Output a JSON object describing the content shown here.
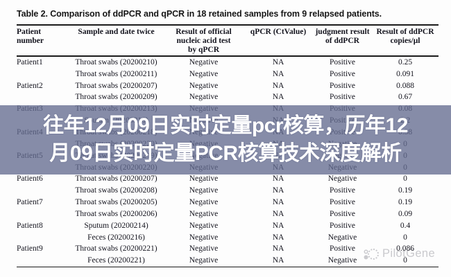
{
  "title": "Table 2. Comparison of ddPCR and qPCR in 18 retained samples from 9 relapsed patients.",
  "table": {
    "headers": [
      "Patient\nnumber",
      "Sample and date twice",
      "Result of official\nnucleic acid test\nby qPCR",
      "qPCR (CtValue)",
      "judgment result\nof ddPCR",
      "Result of ddPCR\ncopies/μl"
    ],
    "rows": [
      {
        "patient": "Patient1",
        "sample": "Throat swabs (20200210)",
        "official": "Negative",
        "ct": "NA",
        "judgment": "Positive",
        "copies": "0.25"
      },
      {
        "patient": "",
        "sample": "Throat swabs (20200211)",
        "official": "Negative",
        "ct": "NA",
        "judgment": "Positive",
        "copies": "0.091"
      },
      {
        "patient": "Patient2",
        "sample": "Throat swabs (20200207)",
        "official": "Negative",
        "ct": "NA",
        "judgment": "Positive",
        "copies": "0.088"
      },
      {
        "patient": "",
        "sample": "Throat swabs (20200209)",
        "official": "Negative",
        "ct": "NA",
        "judgment": "Positive",
        "copies": "0.67"
      },
      {
        "patient": "Patient3",
        "sample": "Throat swabs (20200213)",
        "official": "Negative",
        "ct": "NA",
        "judgment": "Positive",
        "copies": "0.08"
      },
      {
        "patient": "",
        "sample": "Sputum (20200216)",
        "official": "Negative",
        "ct": "NA",
        "judgment": "Positive",
        "copies": "2.2"
      },
      {
        "patient": "Patient4",
        "sample": "Throat swabs (20200218)",
        "official": "Negative",
        "ct": "NA",
        "judgment": "Positive",
        "copies": "0.38"
      },
      {
        "patient": "",
        "sample": "Throat swabs (20200220)",
        "official": "Negative",
        "ct": "NA",
        "judgment": "Negative",
        "copies": "0"
      },
      {
        "patient": "Patient5",
        "sample": "Throat swabs (20200219)",
        "official": "Negative",
        "ct": "NA",
        "judgment": "Negative",
        "copies": "0"
      },
      {
        "patient": "",
        "sample": "Throat swabs (20200220)",
        "official": "Negative",
        "ct": "NA",
        "judgment": "Negative",
        "copies": "0"
      },
      {
        "patient": "Patient6",
        "sample": "Throat swabs (20200207)",
        "official": "Negative",
        "ct": "NA",
        "judgment": "Negative",
        "copies": "0"
      },
      {
        "patient": "",
        "sample": "Throat swabs (20200208)",
        "official": "Negative",
        "ct": "NA",
        "judgment": "Positive",
        "copies": "0.19"
      },
      {
        "patient": "Patient7",
        "sample": "Throat swabs (20200205)",
        "official": "Negative",
        "ct": "NA",
        "judgment": "Positive",
        "copies": "0.19"
      },
      {
        "patient": "",
        "sample": "Throat swabs (20200206)",
        "official": "Negative",
        "ct": "NA",
        "judgment": "Positive",
        "copies": "0.09"
      },
      {
        "patient": "Patient8",
        "sample": "Sputum (20200214)",
        "official": "Negative",
        "ct": "NA",
        "judgment": "Positive",
        "copies": "0.4"
      },
      {
        "patient": "",
        "sample": "Feces (20200216)",
        "official": "Negative",
        "ct": "NA",
        "judgment": "Negative",
        "copies": "0"
      },
      {
        "patient": "Patient9",
        "sample": "Throat swabs (20200221)",
        "official": "Negative",
        "ct": "NA",
        "judgment": "Positive",
        "copies": "0.086"
      },
      {
        "patient": "",
        "sample": "Feces (20200221)",
        "official": "Negative",
        "ct": "NA",
        "judgment": "Negative",
        "copies": "0"
      }
    ]
  },
  "overlay": {
    "line1": "往年12月09日实时定量pcr核算，历年12",
    "line2": "月09日实时定量PCR核算技术深度解析",
    "band_color": "#646b8f",
    "text_color": "#ffffff"
  },
  "watermark": {
    "label": "PilotGene",
    "color": "#c7c7cb"
  }
}
